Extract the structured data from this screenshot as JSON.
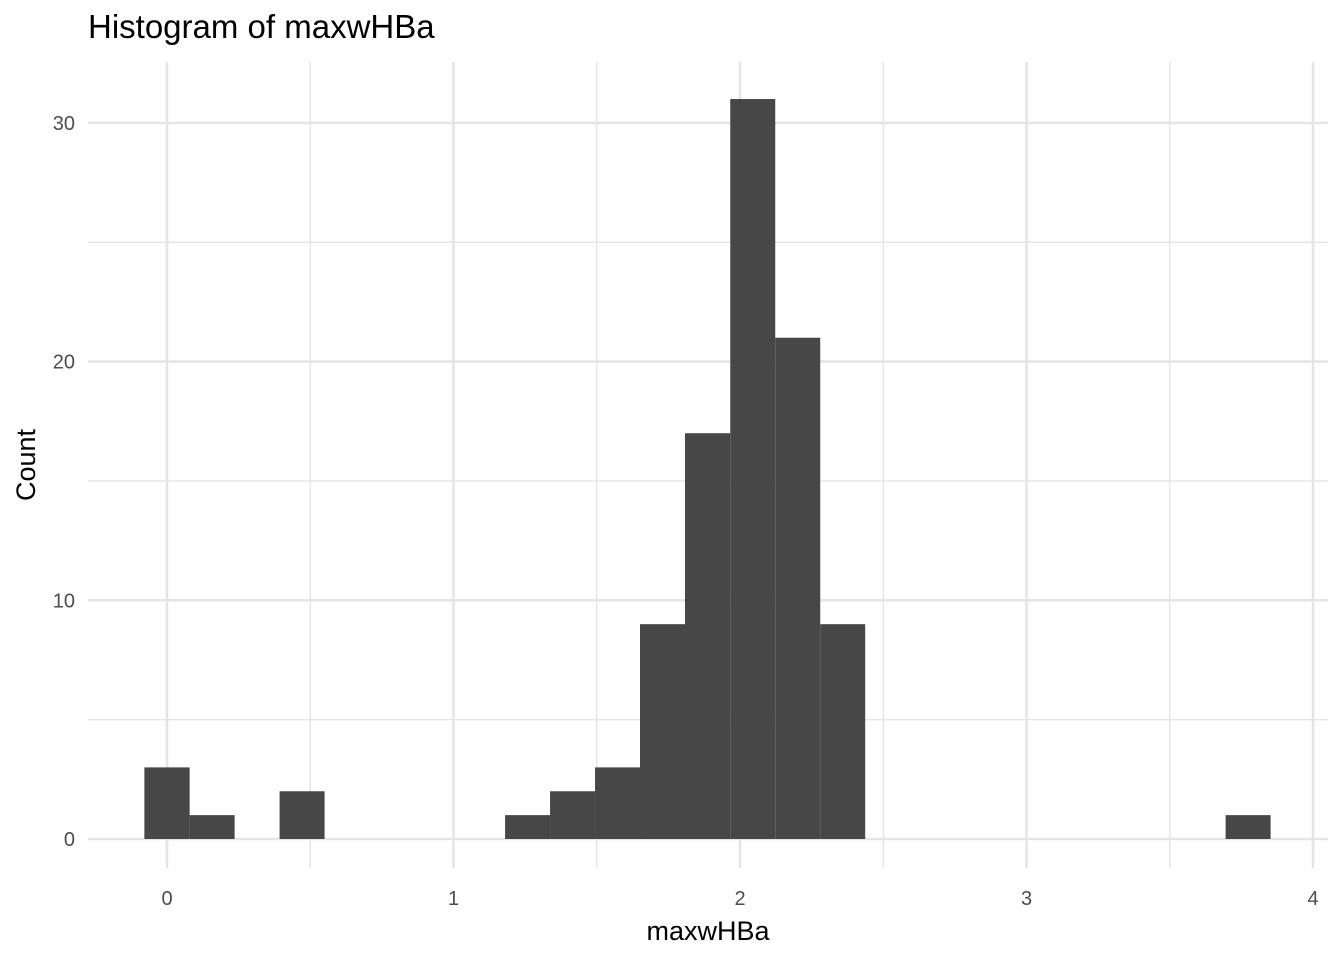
{
  "chart_data": {
    "type": "bar",
    "title": "Histogram of maxwHBa",
    "xlabel": "maxwHBa",
    "ylabel": "Count",
    "xlim": [
      -0.3,
      4.05
    ],
    "ylim": [
      0,
      32.5
    ],
    "x_ticks": [
      "0",
      "1",
      "2",
      "3",
      "4"
    ],
    "y_ticks": [
      "0",
      "10",
      "20",
      "30"
    ],
    "grid": true,
    "legend": "none",
    "bins": [
      {
        "x0": -0.079,
        "x1": 0.079,
        "count": 3
      },
      {
        "x0": 0.079,
        "x1": 0.236,
        "count": 1
      },
      {
        "x0": 0.393,
        "x1": 0.55,
        "count": 2
      },
      {
        "x0": 1.18,
        "x1": 1.337,
        "count": 1
      },
      {
        "x0": 1.337,
        "x1": 1.494,
        "count": 2
      },
      {
        "x0": 1.494,
        "x1": 1.651,
        "count": 3
      },
      {
        "x0": 1.651,
        "x1": 1.808,
        "count": 9
      },
      {
        "x0": 1.808,
        "x1": 1.966,
        "count": 17
      },
      {
        "x0": 1.966,
        "x1": 2.123,
        "count": 31
      },
      {
        "x0": 2.123,
        "x1": 2.28,
        "count": 21
      },
      {
        "x0": 2.28,
        "x1": 2.437,
        "count": 9
      },
      {
        "x0": 3.695,
        "x1": 3.852,
        "count": 1
      }
    ],
    "colors": {
      "bar": "#474747",
      "grid_major": "#e5e5e5",
      "grid_minor": "#f0f0f0",
      "tick_text": "#4d4d4d"
    }
  }
}
